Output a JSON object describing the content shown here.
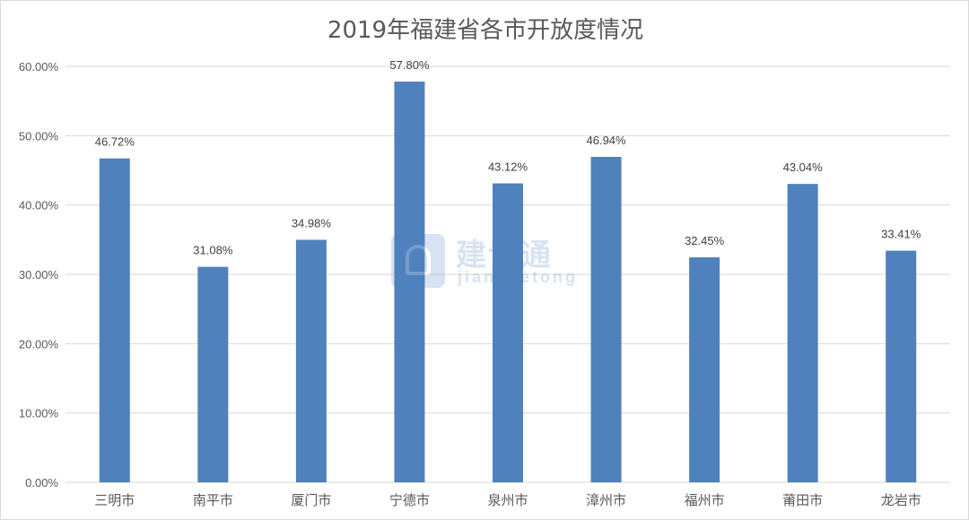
{
  "chart_data": {
    "type": "bar",
    "title": "2019年福建省各市开放度情况",
    "xlabel": "",
    "ylabel": "",
    "categories": [
      "三明市",
      "南平市",
      "厦门市",
      "宁德市",
      "泉州市",
      "漳州市",
      "福州市",
      "莆田市",
      "龙岩市"
    ],
    "values": [
      46.72,
      31.08,
      34.98,
      57.8,
      43.12,
      46.94,
      32.45,
      43.04,
      33.41
    ],
    "value_labels": [
      "46.72%",
      "31.08%",
      "34.98%",
      "57.80%",
      "43.12%",
      "46.94%",
      "32.45%",
      "43.04%",
      "33.41%"
    ],
    "ylim": [
      0,
      60
    ],
    "yticks": [
      0,
      10,
      20,
      30,
      40,
      50,
      60
    ],
    "ytick_labels": [
      "0.00%",
      "10.00%",
      "20.00%",
      "30.00%",
      "40.00%",
      "50.00%",
      "60.00%"
    ],
    "grid": true,
    "legend": "none",
    "bar_color": "#4f81bd",
    "grid_color": "#d9d9d9"
  },
  "watermark": {
    "text": "建设通",
    "subtext": "jianshetong"
  }
}
